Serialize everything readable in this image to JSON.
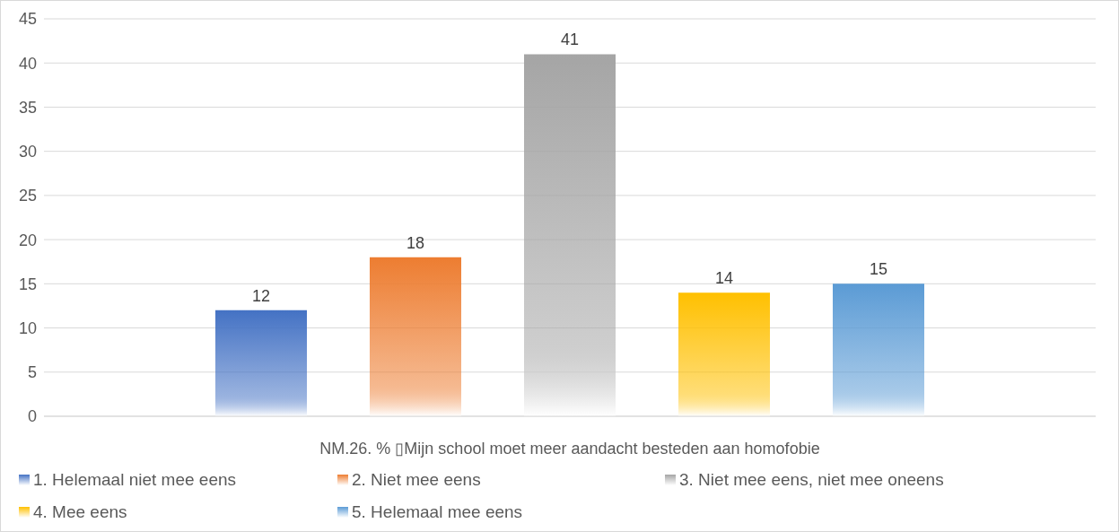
{
  "chart_data": {
    "type": "bar",
    "xlabel": "NM.26. % ▯Mijn school moet meer aandacht besteden aan homofobie",
    "categories": [
      null
    ],
    "series": [
      {
        "name": "1. Helemaal niet mee eens",
        "color": "#4472c4",
        "values": [
          12
        ]
      },
      {
        "name": "2. Niet mee eens",
        "color": "#ed7d31",
        "values": [
          18
        ]
      },
      {
        "name": "3. Niet mee eens, niet mee oneens",
        "color": "#a5a5a5",
        "values": [
          41
        ]
      },
      {
        "name": "4. Mee eens",
        "color": "#ffc000",
        "values": [
          14
        ]
      },
      {
        "name": "5. Helemaal mee eens",
        "color": "#5b9bd5",
        "values": [
          15
        ]
      }
    ],
    "ylim": [
      0,
      45
    ],
    "yticks": [
      0,
      5,
      10,
      15,
      20,
      25,
      30,
      35,
      40,
      45
    ],
    "grid": "y",
    "legend": "bottom",
    "data_labels": true
  }
}
